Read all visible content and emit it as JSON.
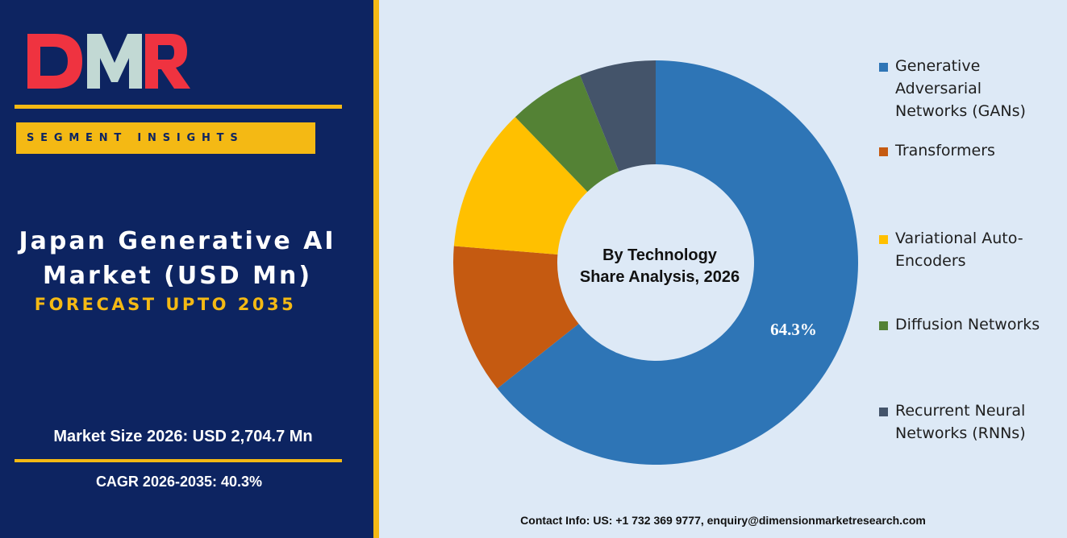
{
  "brand": {
    "logo_text": "DMR",
    "logo_colors": {
      "D": "#ef3340",
      "M": "#c2d9d4",
      "R": "#ef3340"
    }
  },
  "panel": {
    "segment_label": "SEGMENT INSIGHTS",
    "title_line1": "Japan Generative AI",
    "title_line2": "Market (USD Mn)",
    "subtitle": "FORECAST UPTO 2035",
    "market_size": "Market Size 2026: USD 2,704.7 Mn",
    "cagr": "CAGR 2026-2035: 40.3%"
  },
  "colors": {
    "navy": "#0d2461",
    "gold": "#f4b914",
    "chart_bg": "#dde9f6"
  },
  "chart_data": {
    "type": "pie",
    "variant": "donut",
    "center_label_line1": "By Technology",
    "center_label_line2": "Share Analysis, 2026",
    "slices": [
      {
        "name": "Generative Adversarial Networks (GANs)",
        "value": 64.3,
        "color": "#2e75b6",
        "label": "64.3%"
      },
      {
        "name": "Transformers",
        "value": 12.0,
        "color": "#c55a11",
        "label": ""
      },
      {
        "name": "Variational Auto-Encoders",
        "value": 11.5,
        "color": "#ffc000",
        "label": ""
      },
      {
        "name": "Diffusion Networks",
        "value": 6.1,
        "color": "#548235",
        "label": ""
      },
      {
        "name": "Recurrent Neural Networks (RNNs)",
        "value": 6.1,
        "color": "#44546a",
        "label": ""
      }
    ],
    "legend_position": "right"
  },
  "legend": [
    {
      "lines": [
        "Generative",
        "Adversarial",
        "Networks (GANs)"
      ],
      "color": "#2e75b6"
    },
    {
      "lines": [
        "Transformers"
      ],
      "color": "#c55a11"
    },
    {
      "lines": [
        "Variational Auto-",
        "Encoders"
      ],
      "color": "#ffc000"
    },
    {
      "lines": [
        "Diffusion Networks"
      ],
      "color": "#548235"
    },
    {
      "lines": [
        "Recurrent Neural",
        "Networks (RNNs)"
      ],
      "color": "#44546a"
    }
  ],
  "contact": "Contact Info: US: +1 732 369 9777, enquiry@dimensionmarketresearch.com"
}
